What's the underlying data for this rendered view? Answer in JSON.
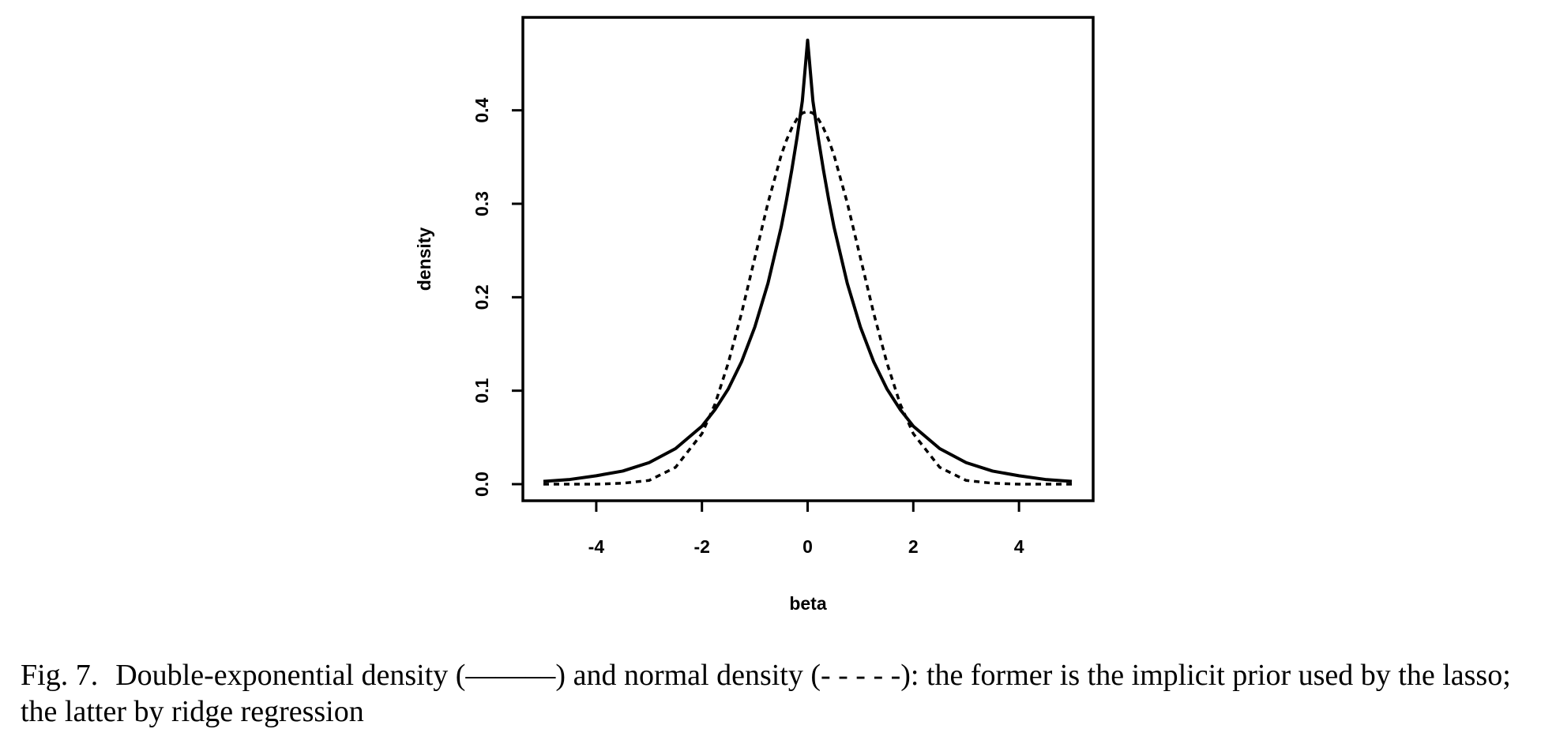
{
  "figure": {
    "caption_label": "Fig. 7.",
    "caption_text": "Double-exponential density (——––) and normal density (- - - - -): the former is the implicit prior used by the lasso; the latter by ridge regression"
  },
  "chart_data": {
    "type": "line",
    "title": "",
    "xlabel": "beta",
    "ylabel": "density",
    "xlim": [
      -5,
      5
    ],
    "ylim": [
      0,
      0.48
    ],
    "x_ticks": [
      -4,
      -2,
      0,
      2,
      4
    ],
    "x_tick_labels": [
      "-4",
      "-2",
      "0",
      "2",
      "4"
    ],
    "y_ticks": [
      0.0,
      0.1,
      0.2,
      0.3,
      0.4
    ],
    "y_tick_labels": [
      "0.0",
      "0.1",
      "0.2",
      "0.3",
      "0.4"
    ],
    "grid": false,
    "legend": "none",
    "x": [
      -5,
      -4.5,
      -4,
      -3.5,
      -3,
      -2.5,
      -2,
      -1.75,
      -1.5,
      -1.25,
      -1,
      -0.75,
      -0.5,
      -0.4,
      -0.3,
      -0.2,
      -0.1,
      0,
      0.1,
      0.2,
      0.3,
      0.4,
      0.5,
      0.75,
      1,
      1.25,
      1.5,
      1.75,
      2,
      2.5,
      3,
      3.5,
      4,
      4.5,
      5
    ],
    "series": [
      {
        "style": "solid",
        "values": [
          0.003,
          0.005,
          0.009,
          0.014,
          0.023,
          0.038,
          0.062,
          0.08,
          0.102,
          0.131,
          0.168,
          0.215,
          0.275,
          0.304,
          0.336,
          0.371,
          0.41,
          0.475,
          0.41,
          0.371,
          0.336,
          0.304,
          0.275,
          0.215,
          0.168,
          0.131,
          0.102,
          0.08,
          0.062,
          0.038,
          0.023,
          0.014,
          0.009,
          0.005,
          0.003
        ]
      },
      {
        "style": "dashed",
        "values": [
          0.0,
          0.0,
          0.0,
          0.001,
          0.004,
          0.018,
          0.054,
          0.086,
          0.13,
          0.183,
          0.242,
          0.301,
          0.352,
          0.368,
          0.381,
          0.391,
          0.397,
          0.399,
          0.397,
          0.391,
          0.381,
          0.368,
          0.352,
          0.301,
          0.242,
          0.183,
          0.13,
          0.086,
          0.054,
          0.018,
          0.004,
          0.001,
          0.0,
          0.0,
          0.0
        ]
      }
    ]
  }
}
